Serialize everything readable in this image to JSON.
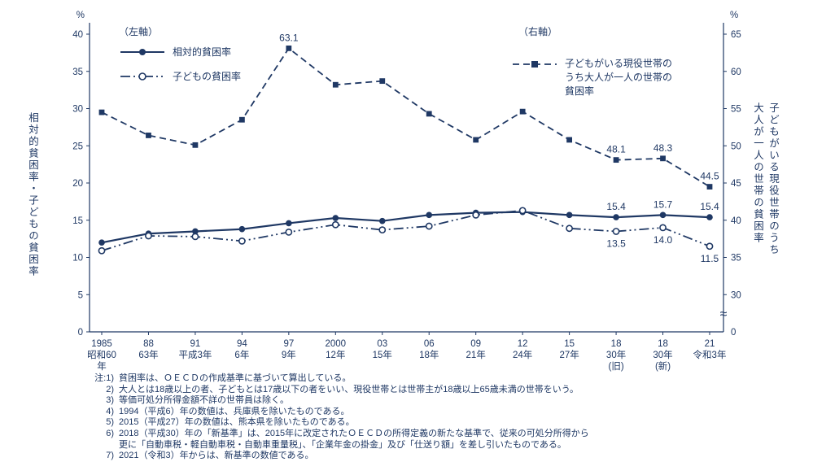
{
  "chart_data": {
    "type": "line",
    "colors": {
      "line": "#1f3864"
    },
    "left_axis": {
      "unit": "%",
      "label": "相対的貧困率・子どもの貧困率",
      "ticks": [
        0,
        5,
        10,
        15,
        20,
        25,
        30,
        35,
        40
      ],
      "range": [
        0,
        40
      ]
    },
    "right_axis": {
      "unit": "%",
      "label_lines": [
        "子どもがいる現役世帯のうち",
        "大人が一人の世帯の貧困率"
      ],
      "ticks": [
        30,
        35,
        40,
        45,
        50,
        55,
        60,
        65
      ],
      "zero_label": "0",
      "break_symbol": "≈",
      "offset": 25
    },
    "legend": {
      "left_header": "（左軸）",
      "right_header": "（右軸）",
      "right_item_lines": [
        "子どもがいる現役世帯の",
        "うち大人が一人の世帯の",
        "貧困率"
      ]
    },
    "categories": [
      [
        "1985",
        "昭和60",
        "年"
      ],
      [
        "88",
        "63年"
      ],
      [
        "91",
        "平成3年"
      ],
      [
        "94",
        "6年"
      ],
      [
        "97",
        "9年"
      ],
      [
        "2000",
        "12年"
      ],
      [
        "03",
        "15年"
      ],
      [
        "06",
        "18年"
      ],
      [
        "09",
        "21年"
      ],
      [
        "12",
        "24年"
      ],
      [
        "15",
        "27年"
      ],
      [
        "18",
        "30年",
        "(旧)"
      ],
      [
        "18",
        "30年",
        "(新)"
      ],
      [
        "21",
        "令和3年"
      ]
    ],
    "series": [
      {
        "name": "相対的貧困率",
        "axis": "left",
        "style": "solid",
        "marker": "filled-circle",
        "values": [
          12.0,
          13.2,
          13.5,
          13.8,
          14.6,
          15.3,
          14.9,
          15.7,
          16.0,
          16.1,
          15.7,
          15.4,
          15.7,
          15.4
        ]
      },
      {
        "name": "子どもの貧困率",
        "axis": "left",
        "style": "dash-dot",
        "marker": "open-circle",
        "values": [
          10.9,
          12.9,
          12.8,
          12.2,
          13.4,
          14.4,
          13.7,
          14.2,
          15.7,
          16.3,
          13.9,
          13.5,
          14.0,
          11.5
        ]
      },
      {
        "name": "子どもがいる現役世帯のうち大人が一人の世帯の貧困率",
        "axis": "right",
        "style": "dashed",
        "marker": "filled-square",
        "values": [
          54.5,
          51.4,
          50.1,
          53.5,
          63.1,
          58.2,
          58.7,
          54.3,
          50.8,
          54.6,
          50.8,
          48.1,
          48.3,
          44.5
        ]
      }
    ],
    "point_labels": [
      {
        "series": 2,
        "index": 4,
        "text": "63.1",
        "pos": "above"
      },
      {
        "series": 2,
        "index": 11,
        "text": "48.1",
        "pos": "above"
      },
      {
        "series": 2,
        "index": 12,
        "text": "48.3",
        "pos": "above"
      },
      {
        "series": 2,
        "index": 13,
        "text": "44.5",
        "pos": "above"
      },
      {
        "series": 0,
        "index": 11,
        "text": "15.4",
        "pos": "above"
      },
      {
        "series": 0,
        "index": 12,
        "text": "15.7",
        "pos": "above"
      },
      {
        "series": 0,
        "index": 13,
        "text": "15.4",
        "pos": "above"
      },
      {
        "series": 1,
        "index": 11,
        "text": "13.5",
        "pos": "below"
      },
      {
        "series": 1,
        "index": 12,
        "text": "14.0",
        "pos": "below"
      },
      {
        "series": 1,
        "index": 13,
        "text": "11.5",
        "pos": "below"
      }
    ]
  },
  "notes": [
    {
      "label": "注:1)",
      "text": "貧困率は、ＯＥＣＤの作成基準に基づいて算出している。"
    },
    {
      "label": "2)",
      "text": "大人とは18歳以上の者、子どもとは17歳以下の者をいい、現役世帯とは世帯主が18歳以上65歳未満の世帯をいう。"
    },
    {
      "label": "3)",
      "text": "等価可処分所得金額不詳の世帯員は除く。"
    },
    {
      "label": "4)",
      "text": "1994（平成6）年の数値は、兵庫県を除いたものである。"
    },
    {
      "label": "5)",
      "text": "2015（平成27）年の数値は、熊本県を除いたものである。"
    },
    {
      "label": "6)",
      "text": "2018（平成30）年の「新基準」は、2015年に改定されたＯＥＣＤの所得定義の新たな基準で、従来の可処分所得から"
    },
    {
      "label": "",
      "text": "更に「自動車税・軽自動車税・自動車重量税」、「企業年金の掛金」及び「仕送り額」を差し引いたものである。"
    },
    {
      "label": "7)",
      "text": "2021（令和3）年からは、新基準の数値である。"
    }
  ]
}
